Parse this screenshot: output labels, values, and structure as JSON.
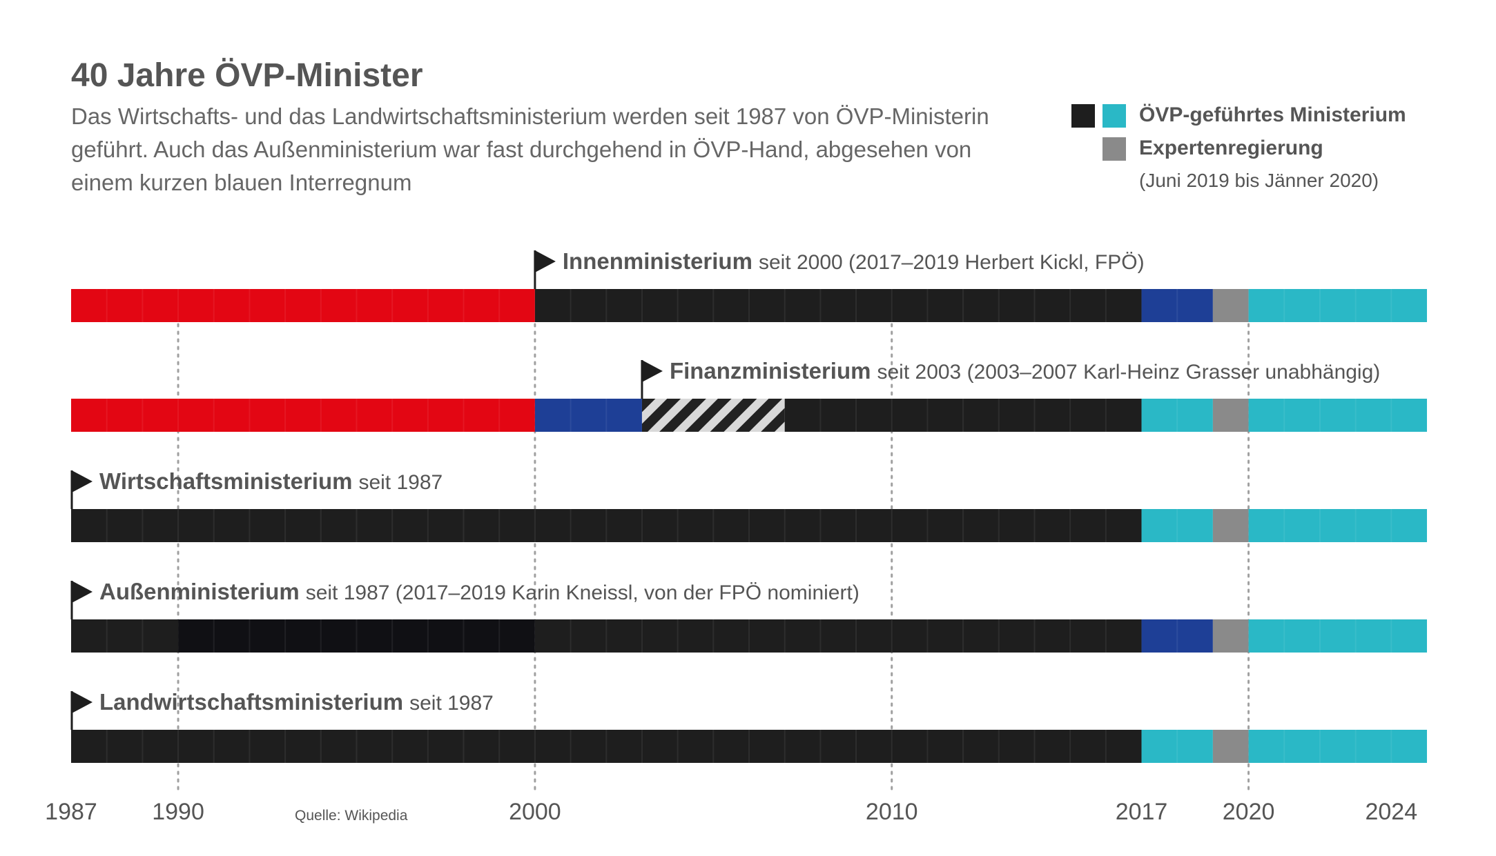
{
  "header": {
    "title": "40 Jahre ÖVP-Minister",
    "subtitle": "Das Wirtschafts- und das Landwirtschaftsministerium werden seit 1987 von ÖVP-Ministerin geführt. Auch das Außenministerium war fast durchgehend in ÖVP-Hand, abgesehen von einem kurzen blauen Interregnum"
  },
  "legend": {
    "oevp_label": "ÖVP-geführtes Ministerium",
    "expert_label": "Expertenregierung",
    "expert_note": "(Juni 2019 bis Jänner 2020)"
  },
  "colors": {
    "spoe": "#e30613",
    "oevp": "#1e1e1e",
    "oevp_dark": "#101014",
    "fpoe": "#1e3f96",
    "oevp_new": "#2ab8c6",
    "expert": "#8a8a8a",
    "independent_stripe_a": "#222222",
    "independent_stripe_b": "#d9d9d9"
  },
  "source": "Quelle: Wikipedia",
  "chart_data": {
    "type": "timeline",
    "x_range": [
      1987,
      2025
    ],
    "x_ticks": [
      1987,
      1990,
      2000,
      2010,
      2017,
      2020,
      2024
    ],
    "gridlines": [
      1990,
      2000,
      2010,
      2020
    ],
    "rows": [
      {
        "name": "Innenministerium",
        "detail": "seit 2000 (2017–2019 Herbert Kickl, FPÖ)",
        "flag_year": 2000,
        "segments": [
          {
            "from": 1987,
            "to": 2000,
            "party": "spoe"
          },
          {
            "from": 2000,
            "to": 2017,
            "party": "oevp"
          },
          {
            "from": 2017,
            "to": 2019,
            "party": "fpoe"
          },
          {
            "from": 2019,
            "to": 2020,
            "party": "expert"
          },
          {
            "from": 2020,
            "to": 2025,
            "party": "oevp_new"
          }
        ]
      },
      {
        "name": "Finanzministerium",
        "detail": "seit 2003 (2003–2007 Karl-Heinz Grasser unabhängig)",
        "flag_year": 2003,
        "segments": [
          {
            "from": 1987,
            "to": 2000,
            "party": "spoe"
          },
          {
            "from": 2000,
            "to": 2003,
            "party": "fpoe"
          },
          {
            "from": 2003,
            "to": 2007,
            "party": "independent"
          },
          {
            "from": 2007,
            "to": 2017,
            "party": "oevp"
          },
          {
            "from": 2017,
            "to": 2019,
            "party": "oevp_new"
          },
          {
            "from": 2019,
            "to": 2020,
            "party": "expert"
          },
          {
            "from": 2020,
            "to": 2025,
            "party": "oevp_new"
          }
        ]
      },
      {
        "name": "Wirtschaftsministerium",
        "detail": "seit 1987",
        "flag_year": 1987,
        "segments": [
          {
            "from": 1987,
            "to": 2017,
            "party": "oevp"
          },
          {
            "from": 2017,
            "to": 2019,
            "party": "oevp_new"
          },
          {
            "from": 2019,
            "to": 2020,
            "party": "expert"
          },
          {
            "from": 2020,
            "to": 2025,
            "party": "oevp_new"
          }
        ]
      },
      {
        "name": "Außenministerium",
        "detail": "seit 1987 (2017–2019 Karin Kneissl, von der FPÖ nominiert)",
        "flag_year": 1987,
        "segments": [
          {
            "from": 1987,
            "to": 1990,
            "party": "oevp"
          },
          {
            "from": 1990,
            "to": 2000,
            "party": "oevp_dark"
          },
          {
            "from": 2000,
            "to": 2017,
            "party": "oevp"
          },
          {
            "from": 2017,
            "to": 2019,
            "party": "fpoe"
          },
          {
            "from": 2019,
            "to": 2020,
            "party": "expert"
          },
          {
            "from": 2020,
            "to": 2025,
            "party": "oevp_new"
          }
        ]
      },
      {
        "name": "Landwirtschaftsministerium",
        "detail": "seit 1987",
        "flag_year": 1987,
        "segments": [
          {
            "from": 1987,
            "to": 2017,
            "party": "oevp"
          },
          {
            "from": 2017,
            "to": 2019,
            "party": "oevp_new"
          },
          {
            "from": 2019,
            "to": 2020,
            "party": "expert"
          },
          {
            "from": 2020,
            "to": 2025,
            "party": "oevp_new"
          }
        ]
      }
    ]
  }
}
